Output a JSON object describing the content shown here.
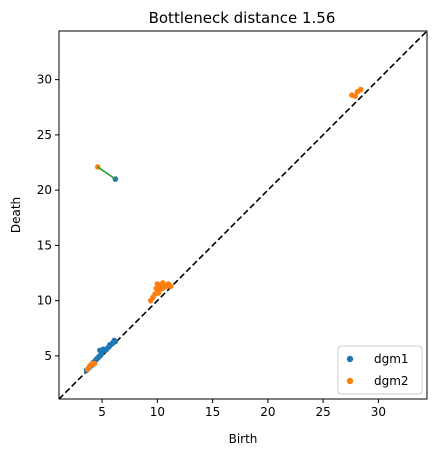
{
  "chart_data": {
    "type": "scatter",
    "title": "Bottleneck distance 1.56",
    "xlabel": "Birth",
    "ylabel": "Death",
    "xlim": [
      1.1,
      34.4
    ],
    "ylim": [
      1.1,
      34.4
    ],
    "xticks": [
      5,
      10,
      15,
      20,
      25,
      30
    ],
    "yticks": [
      5,
      10,
      15,
      20,
      25,
      30
    ],
    "grid": false,
    "legend_position": "bottom-right",
    "diagonal": {
      "style": "dashed",
      "color": "#000000"
    },
    "matching_line": {
      "from": [
        4.6,
        22.1
      ],
      "to": [
        6.2,
        21.0
      ],
      "color": "#2ca02c"
    },
    "series": [
      {
        "name": "dgm1",
        "color": "#1f77b4",
        "points": [
          [
            3.6,
            3.7
          ],
          [
            3.8,
            3.9
          ],
          [
            4.0,
            4.1
          ],
          [
            4.1,
            4.2
          ],
          [
            4.2,
            4.4
          ],
          [
            4.3,
            4.4
          ],
          [
            4.4,
            4.6
          ],
          [
            4.5,
            4.7
          ],
          [
            4.6,
            4.8
          ],
          [
            4.7,
            4.9
          ],
          [
            4.8,
            5.0
          ],
          [
            4.9,
            5.1
          ],
          [
            4.8,
            5.5
          ],
          [
            5.0,
            5.4
          ],
          [
            5.1,
            5.6
          ],
          [
            5.2,
            5.5
          ],
          [
            5.3,
            5.6
          ],
          [
            5.4,
            5.6
          ],
          [
            5.6,
            5.8
          ],
          [
            5.7,
            6.0
          ],
          [
            5.9,
            6.1
          ],
          [
            6.0,
            6.2
          ],
          [
            6.1,
            6.4
          ],
          [
            6.2,
            6.3
          ],
          [
            6.2,
            21.0
          ]
        ]
      },
      {
        "name": "dgm2",
        "color": "#ff7f0e",
        "points": [
          [
            3.7,
            3.8
          ],
          [
            3.9,
            4.1
          ],
          [
            4.1,
            4.3
          ],
          [
            4.3,
            4.3
          ],
          [
            9.4,
            10.0
          ],
          [
            9.6,
            10.3
          ],
          [
            9.8,
            10.6
          ],
          [
            9.9,
            11.1
          ],
          [
            10.0,
            11.5
          ],
          [
            10.1,
            10.7
          ],
          [
            10.2,
            11.0
          ],
          [
            10.3,
            11.4
          ],
          [
            10.4,
            11.1
          ],
          [
            10.5,
            11.6
          ],
          [
            10.6,
            11.2
          ],
          [
            10.8,
            11.3
          ],
          [
            11.0,
            11.5
          ],
          [
            11.2,
            11.3
          ],
          [
            27.6,
            28.6
          ],
          [
            27.9,
            28.5
          ],
          [
            28.1,
            28.9
          ],
          [
            28.4,
            29.1
          ],
          [
            4.6,
            22.1
          ]
        ]
      }
    ]
  }
}
